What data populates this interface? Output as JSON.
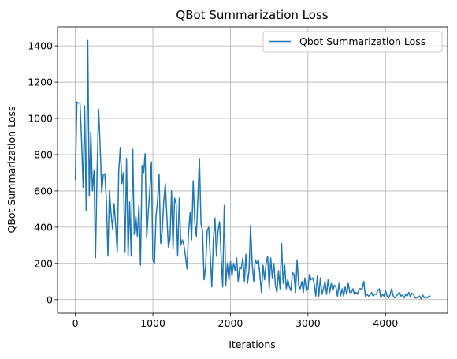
{
  "chart_data": {
    "type": "line",
    "title": "QBot Summarization Loss",
    "xlabel": "Iterations",
    "ylabel": "QBot Summarization Loss",
    "xlim": [
      -230,
      4800
    ],
    "ylim": [
      -75,
      1505
    ],
    "xticks": [
      0,
      1000,
      2000,
      3000,
      4000
    ],
    "yticks": [
      0,
      200,
      400,
      600,
      800,
      1000,
      1200,
      1400
    ],
    "grid": true,
    "legend_position": "top-right",
    "series": [
      {
        "name": "Qbot Summarization Loss",
        "color": "#1f77b4",
        "x": [
          0,
          20,
          40,
          60,
          80,
          100,
          120,
          140,
          160,
          180,
          200,
          220,
          240,
          260,
          280,
          300,
          320,
          340,
          360,
          380,
          400,
          420,
          440,
          460,
          480,
          500,
          520,
          540,
          560,
          580,
          600,
          620,
          640,
          660,
          680,
          700,
          720,
          740,
          760,
          780,
          800,
          820,
          840,
          860,
          880,
          900,
          920,
          940,
          960,
          980,
          1000,
          1020,
          1040,
          1060,
          1080,
          1100,
          1120,
          1140,
          1160,
          1180,
          1200,
          1220,
          1240,
          1260,
          1280,
          1300,
          1320,
          1340,
          1360,
          1380,
          1400,
          1420,
          1440,
          1460,
          1480,
          1500,
          1520,
          1540,
          1560,
          1580,
          1600,
          1620,
          1640,
          1660,
          1680,
          1700,
          1720,
          1740,
          1760,
          1780,
          1800,
          1820,
          1840,
          1860,
          1880,
          1900,
          1920,
          1940,
          1960,
          1980,
          2000,
          2020,
          2040,
          2060,
          2080,
          2100,
          2120,
          2140,
          2160,
          2180,
          2200,
          2220,
          2240,
          2260,
          2280,
          2300,
          2320,
          2340,
          2360,
          2380,
          2400,
          2420,
          2440,
          2460,
          2480,
          2500,
          2520,
          2540,
          2560,
          2580,
          2600,
          2620,
          2640,
          2660,
          2680,
          2700,
          2720,
          2740,
          2760,
          2780,
          2800,
          2820,
          2840,
          2860,
          2880,
          2900,
          2920,
          2940,
          2960,
          2980,
          3000,
          3020,
          3040,
          3060,
          3080,
          3100,
          3120,
          3140,
          3160,
          3180,
          3200,
          3220,
          3240,
          3260,
          3280,
          3300,
          3320,
          3340,
          3360,
          3380,
          3400,
          3420,
          3440,
          3460,
          3480,
          3500,
          3520,
          3540,
          3560,
          3580,
          3600,
          3620,
          3640,
          3660,
          3680,
          3700,
          3720,
          3740,
          3760,
          3780,
          3800,
          3820,
          3840,
          3860,
          3880,
          3900,
          3920,
          3940,
          3960,
          3980,
          4000,
          4020,
          4040,
          4060,
          4080,
          4100,
          4120,
          4140,
          4160,
          4180,
          4200,
          4220,
          4240,
          4260,
          4280,
          4300,
          4320,
          4340,
          4360,
          4380,
          4400,
          4420,
          4440,
          4460,
          4480,
          4500,
          4520,
          4540,
          4560,
          4580
        ],
        "y": [
          660,
          1090,
          1085,
          1085,
          880,
          620,
          1070,
          490,
          1430,
          570,
          925,
          600,
          710,
          230,
          700,
          1050,
          850,
          590,
          690,
          695,
          550,
          240,
          600,
          480,
          390,
          530,
          410,
          260,
          710,
          840,
          640,
          700,
          260,
          780,
          240,
          540,
          240,
          830,
          360,
          460,
          350,
          520,
          190,
          740,
          700,
          805,
          340,
          480,
          600,
          760,
          220,
          200,
          460,
          540,
          690,
          310,
          380,
          540,
          640,
          460,
          290,
          330,
          600,
          280,
          560,
          530,
          240,
          560,
          300,
          330,
          300,
          240,
          170,
          370,
          480,
          330,
          655,
          430,
          350,
          560,
          780,
          420,
          380,
          110,
          180,
          380,
          400,
          240,
          70,
          330,
          450,
          240,
          380,
          430,
          240,
          70,
          520,
          80,
          200,
          110,
          210,
          130,
          200,
          160,
          230,
          100,
          180,
          170,
          230,
          100,
          250,
          90,
          160,
          410,
          200,
          100,
          220,
          200,
          220,
          140,
          40,
          190,
          110,
          200,
          240,
          60,
          230,
          120,
          200,
          80,
          40,
          160,
          60,
          310,
          90,
          190,
          60,
          110,
          70,
          50,
          150,
          140,
          40,
          220,
          80,
          60,
          100,
          40,
          120,
          50,
          60,
          140,
          110,
          120,
          90,
          20,
          130,
          20,
          120,
          30,
          60,
          100,
          30,
          110,
          40,
          90,
          50,
          80,
          70,
          20,
          90,
          20,
          60,
          20,
          70,
          30,
          90,
          40,
          40,
          60,
          30,
          40,
          30,
          60,
          60,
          60,
          100,
          20,
          30,
          20,
          25,
          40,
          20,
          30,
          30,
          50,
          60,
          10,
          30,
          20,
          50,
          20,
          10,
          30,
          60,
          20,
          10,
          20,
          30,
          40,
          20,
          25,
          10,
          30,
          20,
          40,
          15,
          35,
          30,
          10,
          10,
          15,
          20,
          5,
          25,
          10,
          15,
          10,
          20,
          20
        ]
      }
    ]
  }
}
